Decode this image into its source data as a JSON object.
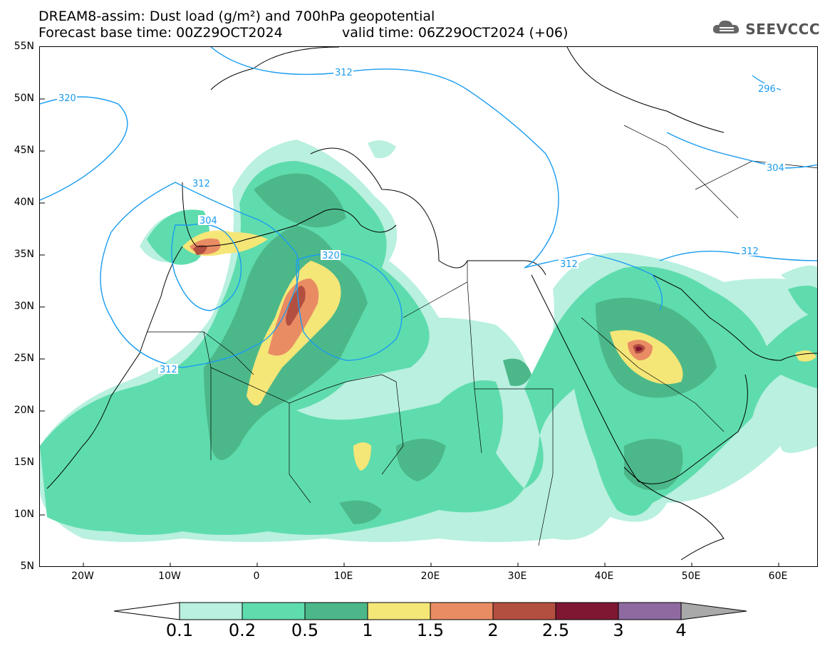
{
  "header": {
    "title_line_1": "DREAM8-assim: Dust load (g/m²) and 700hPa geopotential",
    "title_line_2": "Forecast base time: 00Z29OCT2024",
    "valid_time": "valid time: 06Z29OCT2024 (+06)"
  },
  "logo": {
    "text": "SEEVCCC",
    "icon": "cloud-logo-icon"
  },
  "map": {
    "lat_labels": [
      "55N",
      "50N",
      "45N",
      "40N",
      "35N",
      "30N",
      "25N",
      "20N",
      "15N",
      "10N",
      "5N"
    ],
    "lon_labels": [
      "20W",
      "10W",
      "0",
      "10E",
      "20E",
      "30E",
      "40E",
      "50E",
      "60E"
    ],
    "contour_labels": [
      "312",
      "320",
      "312",
      "304",
      "312",
      "304",
      "320",
      "312",
      "312",
      "296",
      "304"
    ],
    "contour_color": "#1a9cf0",
    "dust_colors": {
      "c01": "#b9f0e0",
      "c02": "#5fdcad",
      "c05": "#4cb88a",
      "c1": "#f5e678",
      "c15": "#e98c64",
      "c2": "#b34f40",
      "c25": "#7e1832",
      "c3": "#8f6aa0",
      "c4": "#a9a9a9"
    }
  },
  "colorbar": {
    "labels": [
      "0.1",
      "0.2",
      "0.5",
      "1",
      "1.5",
      "2",
      "2.5",
      "3",
      "4"
    ],
    "colors": [
      "#b9f0e0",
      "#5fdcad",
      "#4cb88a",
      "#f5e678",
      "#e98c64",
      "#b34f40",
      "#7e1832",
      "#8f6aa0"
    ],
    "over_color": "#a9a9a9",
    "under_color": "#ffffff"
  }
}
